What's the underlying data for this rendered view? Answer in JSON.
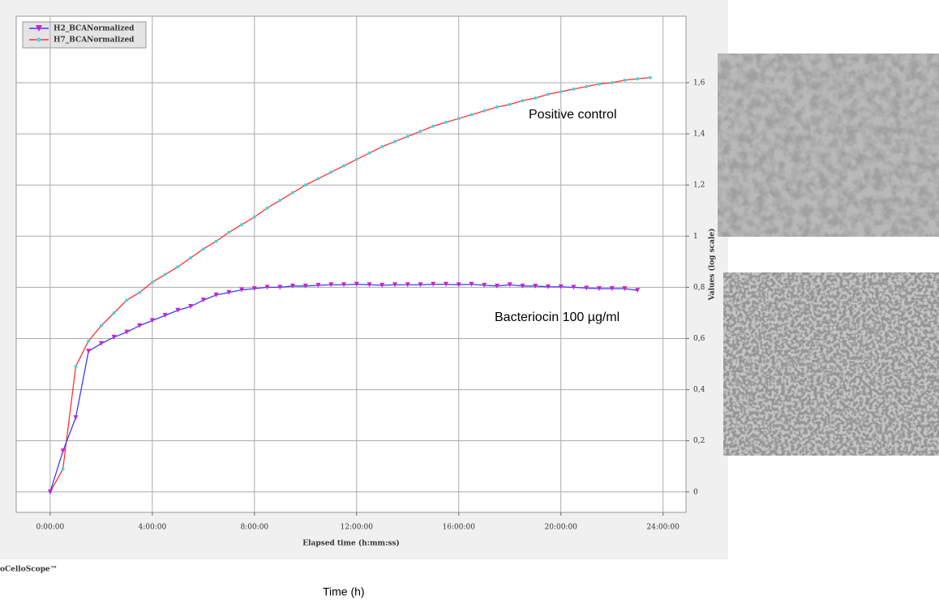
{
  "chart_data": {
    "type": "line",
    "legend_position": "upper left",
    "grid": true,
    "x_label": "Elapsed time (h:mm:ss)",
    "y_label": "Values (log scale)",
    "annotations": [
      "Positive control",
      "Bacteriocin 100 µg/ml"
    ],
    "footer": "oCelloScope™",
    "caption": "Time (h)",
    "xlim": [
      -1.33,
      24.9
    ],
    "xticks": [
      {
        "value": 0,
        "label": "0:00:00"
      },
      {
        "value": 4,
        "label": "4:00:00"
      },
      {
        "value": 8,
        "label": "8:00:00"
      },
      {
        "value": 12,
        "label": "12:00:00"
      },
      {
        "value": 16,
        "label": "16:00:00"
      },
      {
        "value": 20,
        "label": "20:00:00"
      },
      {
        "value": 24,
        "label": "24:00:00"
      }
    ],
    "ylim": [
      -0.08,
      1.86
    ],
    "yticks": [
      0,
      {
        "value": 0.2,
        "label": "0,2"
      },
      {
        "value": 0.4,
        "label": "0,4"
      },
      {
        "value": 0.6,
        "label": "0,6"
      },
      {
        "value": 0.8,
        "label": "0,8"
      },
      1,
      {
        "value": 1.2,
        "label": "1,2"
      },
      {
        "value": 1.4,
        "label": "1,4"
      },
      {
        "value": 1.6,
        "label": "1,6"
      }
    ],
    "series": [
      {
        "name": "H2_BCANormalized",
        "color": "#3b3bff",
        "marker_color": "#cc22cc",
        "marker": "triangle",
        "x": [
          0,
          0.5,
          1,
          1.5,
          2,
          2.5,
          3,
          3.5,
          4,
          4.5,
          5,
          5.5,
          6,
          6.5,
          7,
          7.5,
          8,
          8.5,
          9,
          9.5,
          10,
          10.5,
          11,
          11.5,
          12,
          12.5,
          13,
          13.5,
          14,
          14.5,
          15,
          15.5,
          16,
          16.5,
          17,
          17.5,
          18,
          18.5,
          19,
          19.5,
          20,
          20.5,
          21,
          21.5,
          22,
          22.5,
          23
        ],
        "values": [
          0,
          0.16,
          0.29,
          0.55,
          0.58,
          0.605,
          0.625,
          0.65,
          0.67,
          0.69,
          0.71,
          0.725,
          0.75,
          0.77,
          0.78,
          0.79,
          0.795,
          0.8,
          0.8,
          0.805,
          0.805,
          0.808,
          0.81,
          0.81,
          0.812,
          0.81,
          0.808,
          0.81,
          0.81,
          0.81,
          0.812,
          0.812,
          0.81,
          0.812,
          0.808,
          0.805,
          0.81,
          0.805,
          0.805,
          0.802,
          0.802,
          0.8,
          0.797,
          0.795,
          0.795,
          0.795,
          0.788
        ]
      },
      {
        "name": "H7_BCANormalized",
        "color": "#ff3030",
        "marker_color": "#40d8e0",
        "marker": "circle",
        "x": [
          0,
          0.5,
          1,
          1.5,
          2,
          2.5,
          3,
          3.5,
          4,
          4.5,
          5,
          5.5,
          6,
          6.5,
          7,
          7.5,
          8,
          8.5,
          9,
          9.5,
          10,
          10.5,
          11,
          11.5,
          12,
          12.5,
          13,
          13.5,
          14,
          14.5,
          15,
          15.5,
          16,
          16.5,
          17,
          17.5,
          18,
          18.5,
          19,
          19.5,
          20,
          20.5,
          21,
          21.5,
          22,
          22.5,
          23,
          23.5
        ],
        "values": [
          0,
          0.09,
          0.49,
          0.59,
          0.65,
          0.7,
          0.75,
          0.78,
          0.82,
          0.85,
          0.88,
          0.915,
          0.95,
          0.98,
          1.015,
          1.045,
          1.075,
          1.11,
          1.14,
          1.17,
          1.2,
          1.225,
          1.25,
          1.275,
          1.3,
          1.325,
          1.35,
          1.37,
          1.39,
          1.41,
          1.43,
          1.445,
          1.46,
          1.475,
          1.49,
          1.505,
          1.515,
          1.53,
          1.54,
          1.555,
          1.565,
          1.575,
          1.585,
          1.595,
          1.6,
          1.61,
          1.615,
          1.62
        ]
      }
    ]
  }
}
